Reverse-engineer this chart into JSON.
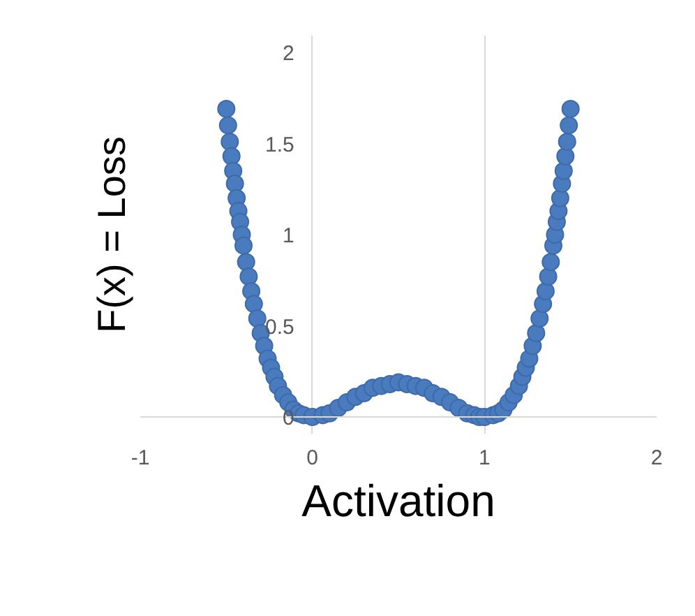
{
  "chart_data": {
    "type": "scatter",
    "xlabel": "Activation",
    "ylabel": "F(x) = Loss",
    "x": [
      -0.5,
      -0.49,
      -0.48,
      -0.47,
      -0.46,
      -0.45,
      -0.44,
      -0.43,
      -0.42,
      -0.41,
      -0.4,
      -0.385,
      -0.37,
      -0.355,
      -0.34,
      -0.32,
      -0.3,
      -0.28,
      -0.26,
      -0.24,
      -0.22,
      -0.2,
      -0.17,
      -0.14,
      -0.11,
      -0.08,
      -0.05,
      0,
      0.06,
      0.1,
      0.15,
      0.2,
      0.25,
      0.3,
      0.35,
      0.4,
      0.45,
      0.5,
      0.55,
      0.6,
      0.65,
      0.7,
      0.75,
      0.8,
      0.85,
      0.9,
      0.94,
      0.97,
      1,
      1.05,
      1.08,
      1.11,
      1.14,
      1.17,
      1.2,
      1.22,
      1.24,
      1.26,
      1.28,
      1.3,
      1.32,
      1.34,
      1.355,
      1.37,
      1.385,
      1.4,
      1.41,
      1.42,
      1.43,
      1.44,
      1.45,
      1.46,
      1.47,
      1.48,
      1.49,
      1.5
    ],
    "series": [
      {
        "color": "#4a7bbf",
        "values": [
          1.69,
          1.6,
          1.51,
          1.43,
          1.35,
          1.28,
          1.2,
          1.13,
          1.07,
          1.0,
          0.94,
          0.85,
          0.77,
          0.69,
          0.62,
          0.54,
          0.46,
          0.39,
          0.32,
          0.27,
          0.22,
          0.17,
          0.12,
          0.08,
          0.04,
          0.02,
          0.01,
          0,
          0.01,
          0.02,
          0.05,
          0.08,
          0.11,
          0.13,
          0.16,
          0.17,
          0.18,
          0.19,
          0.18,
          0.17,
          0.16,
          0.13,
          0.11,
          0.08,
          0.05,
          0.02,
          0.01,
          0.0,
          0,
          0.01,
          0.02,
          0.04,
          0.08,
          0.12,
          0.17,
          0.22,
          0.27,
          0.32,
          0.39,
          0.46,
          0.54,
          0.62,
          0.69,
          0.77,
          0.85,
          0.94,
          1.0,
          1.07,
          1.13,
          1.2,
          1.28,
          1.35,
          1.43,
          1.51,
          1.6,
          1.69
        ]
      }
    ],
    "xlim": [
      -1,
      2
    ],
    "ylim": [
      0,
      2
    ],
    "xticks": [
      -1,
      0,
      1,
      2
    ],
    "yticks": [
      0,
      0.5,
      1,
      1.5,
      2
    ],
    "grid": "x",
    "marker": "circle"
  }
}
